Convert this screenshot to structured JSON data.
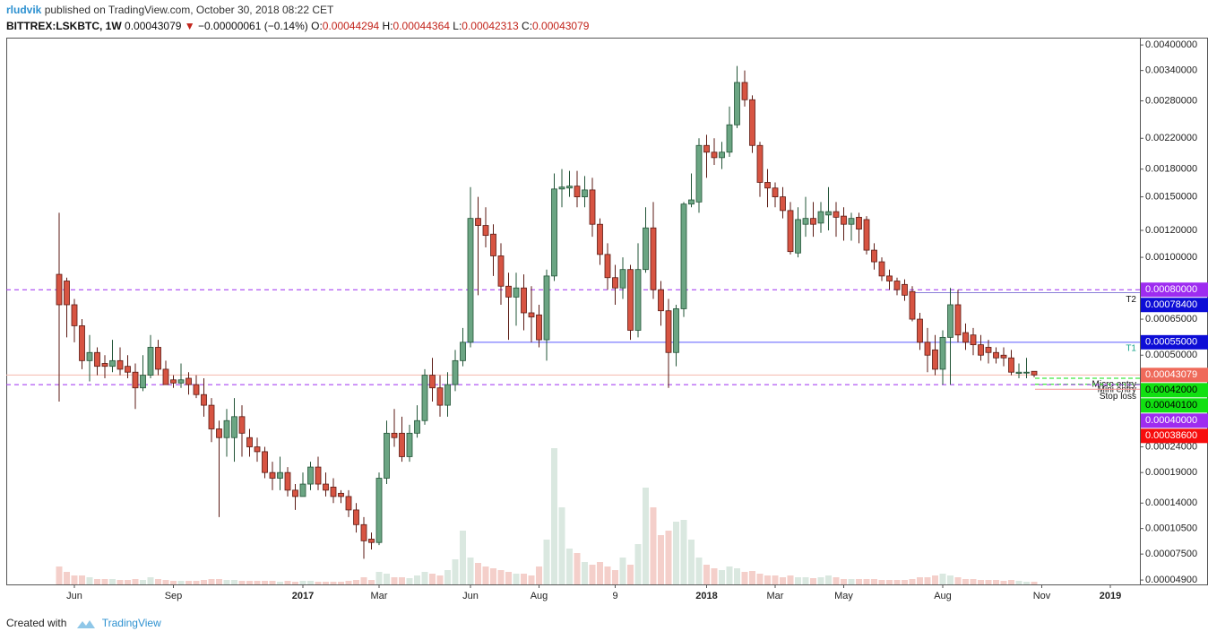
{
  "header": {
    "author": "rludvik",
    "published": "published on TradingView.com, October 30, 2018 08:22 CET",
    "symbol": "BITTREX:LSKBTC, 1W",
    "change": "−0.00000061 (−0.14%)",
    "ohlc_labels": [
      "O:",
      "H:",
      "L:",
      "C:"
    ]
  },
  "footer": {
    "created": "Created with",
    "brand": "TradingView"
  },
  "chart_data": {
    "type": "candlestick",
    "grid": false,
    "categories": [
      null,
      null,
      "Jun",
      null,
      null,
      null,
      null,
      null,
      null,
      null,
      null,
      null,
      null,
      null,
      null,
      "Sep",
      null,
      null,
      null,
      null,
      null,
      null,
      null,
      null,
      null,
      null,
      null,
      null,
      null,
      null,
      null,
      null,
      "2017",
      null,
      null,
      null,
      null,
      null,
      null,
      null,
      null,
      null,
      "Mar",
      null,
      null,
      null,
      null,
      null,
      null,
      null,
      null,
      null,
      null,
      null,
      "Jun",
      null,
      null,
      null,
      null,
      null,
      null,
      null,
      null,
      "Aug",
      null,
      null,
      null,
      null,
      null,
      null,
      null,
      null,
      null,
      "9",
      null,
      null,
      null,
      null,
      null,
      null,
      null,
      null,
      null,
      null,
      null,
      "2018",
      null,
      null,
      null,
      null,
      null,
      null,
      null,
      null,
      "Mar",
      null,
      null,
      null,
      null,
      null,
      null,
      null,
      null,
      "May",
      null,
      null,
      null,
      null,
      null,
      null,
      null,
      null,
      null,
      null,
      null,
      null,
      "Aug",
      null,
      null,
      null,
      null,
      null,
      null,
      null,
      null,
      null,
      null,
      null,
      null,
      "Nov",
      null,
      null,
      null,
      null,
      null,
      null,
      null,
      null,
      "2019",
      null,
      null,
      null
    ],
    "open": [
      0.00089,
      0.00085,
      0.00072,
      0.00062,
      0.00048,
      0.00051,
      0.00047,
      0.00046,
      0.00048,
      0.00046,
      0.00044,
      0.00039,
      0.00043,
      0.00053,
      0.00045,
      0.000415,
      0.000405,
      0.00042,
      0.0004,
      0.00037,
      0.00034,
      0.00028,
      0.00026,
      0.00026,
      0.00031,
      0.00026,
      0.00024,
      0.00023,
      0.00019,
      0.00018,
      0.00019,
      0.00016,
      0.00015,
      0.00017,
      0.0002,
      0.00017,
      0.000165,
      0.000155,
      0.00015,
      0.00013,
      0.00011,
      9.2e-05,
      8.8e-05,
      0.00018,
      0.00027,
      0.00027,
      0.00022,
      0.00027,
      0.0003,
      0.00043,
      0.00039,
      0.00034,
      0.0004,
      0.00048,
      0.00055,
      0.0013,
      0.00124,
      0.00117,
      0.00101,
      0.00082,
      0.00076,
      0.00081,
      0.00068,
      0.00067,
      0.00056,
      0.00088,
      0.00158,
      0.00159,
      0.00161,
      0.0015,
      0.00157,
      0.00125,
      0.00102,
      0.00087,
      0.00081,
      0.00092,
      0.0006,
      0.00092,
      0.00122,
      0.0008,
      0.00069,
      0.00051,
      0.0007,
      0.00143,
      0.00145,
      0.0021,
      0.00201,
      0.00194,
      0.00201,
      0.0024,
      0.00315,
      0.00282,
      0.0021,
      0.00165,
      0.00159,
      0.0015,
      0.00137,
      0.00103,
      0.00125,
      0.0013,
      0.00126,
      0.00133,
      0.00136,
      0.00132,
      0.00125,
      0.00131,
      0.00129,
      0.00105,
      0.00097,
      0.00088,
      0.00085,
      0.00083,
      0.00079,
      0.00065,
      0.00055,
      0.00052,
      0.00045,
      0.00057,
      0.00072,
      0.00059,
      0.00058,
      0.00054,
      0.00053,
      0.00051,
      0.0005,
      0.00049,
      0.000436,
      0.000437,
      0.00044294,
      null,
      null,
      null,
      null,
      null,
      null,
      null,
      null,
      null,
      null,
      null,
      null,
      null
    ],
    "high": [
      0.00135,
      0.00087,
      0.00075,
      0.00065,
      0.00058,
      0.00053,
      0.0005,
      0.00056,
      0.00053,
      0.0005,
      0.00047,
      0.0005,
      0.00058,
      0.00056,
      0.00048,
      0.00043,
      0.00047,
      0.00044,
      0.00043,
      0.00042,
      0.00036,
      0.0003,
      0.00033,
      0.00036,
      0.00034,
      0.00028,
      0.00026,
      0.00024,
      0.00021,
      0.00022,
      0.0002,
      0.00017,
      0.00019,
      0.00021,
      0.00022,
      0.00019,
      0.00018,
      0.00016,
      0.00016,
      0.00014,
      0.00012,
      0.0001,
      0.00019,
      0.0003,
      0.00033,
      0.00031,
      0.00029,
      0.00034,
      0.00045,
      0.00049,
      0.00043,
      0.00044,
      0.00052,
      0.00061,
      0.0016,
      0.0015,
      0.0014,
      0.00125,
      0.0011,
      0.0009,
      0.0009,
      0.00089,
      0.00082,
      0.00072,
      0.00092,
      0.00175,
      0.0018,
      0.00178,
      0.00178,
      0.00172,
      0.0017,
      0.0013,
      0.0011,
      0.00095,
      0.001,
      0.00095,
      0.0011,
      0.0014,
      0.00145,
      0.00085,
      0.00075,
      0.00072,
      0.00145,
      0.00175,
      0.0022,
      0.00225,
      0.0022,
      0.00215,
      0.0027,
      0.0035,
      0.0034,
      0.0029,
      0.00215,
      0.0018,
      0.00165,
      0.0016,
      0.00145,
      0.0014,
      0.0015,
      0.00145,
      0.00145,
      0.0016,
      0.00145,
      0.0014,
      0.00135,
      0.00135,
      0.00132,
      0.0011,
      0.001,
      0.00092,
      0.00087,
      0.00086,
      0.00082,
      0.00068,
      0.00061,
      0.00058,
      0.0006,
      0.00081,
      0.0008,
      0.00063,
      0.00061,
      0.00058,
      0.00056,
      0.00053,
      0.00053,
      0.00052,
      0.00047,
      0.00049,
      0.00044364,
      null,
      null,
      null,
      null,
      null,
      null,
      null,
      null,
      null,
      null,
      null,
      null,
      null
    ],
    "low": [
      0.00035,
      0.00057,
      0.00055,
      0.00045,
      0.00041,
      0.00043,
      0.00042,
      0.00044,
      0.00043,
      0.00042,
      0.00033,
      0.00038,
      0.00042,
      0.00043,
      0.0004,
      0.00039,
      0.00039,
      0.00037,
      0.00036,
      0.00031,
      0.00025,
      0.00012,
      0.00022,
      0.00021,
      0.00022,
      0.00022,
      0.00021,
      0.00018,
      0.00016,
      0.00016,
      0.00015,
      0.00013,
      0.00015,
      0.00016,
      0.00016,
      0.00015,
      0.00014,
      0.00014,
      0.00012,
      0.0001,
      7e-05,
      8e-05,
      8.5e-05,
      0.00017,
      0.00024,
      0.00021,
      0.00021,
      0.00026,
      0.00029,
      0.00035,
      0.00031,
      0.00031,
      0.00038,
      0.00046,
      0.00053,
      0.00077,
      0.00107,
      0.00088,
      0.00072,
      0.00056,
      0.00062,
      0.0006,
      0.00055,
      0.00053,
      0.00048,
      0.00085,
      0.0014,
      0.0015,
      0.0014,
      0.0014,
      0.00115,
      0.00095,
      0.0008,
      0.00072,
      0.00075,
      0.00056,
      0.00057,
      0.0009,
      0.00075,
      0.00062,
      0.00039,
      0.00046,
      0.00066,
      0.0014,
      0.00135,
      0.0017,
      0.00185,
      0.0018,
      0.00195,
      0.00235,
      0.0027,
      0.002,
      0.0015,
      0.0014,
      0.0014,
      0.0013,
      0.00102,
      0.001,
      0.00115,
      0.00115,
      0.00118,
      0.0012,
      0.00115,
      0.00112,
      0.00112,
      0.0011,
      0.00102,
      0.00092,
      0.00085,
      0.0008,
      0.00077,
      0.00074,
      0.00064,
      0.00052,
      0.00044,
      0.00043,
      0.0004,
      0.0004,
      0.00055,
      0.00052,
      0.0005,
      0.00048,
      0.00047,
      0.00047,
      0.00046,
      0.00043,
      0.00042,
      0.00042,
      0.00042313,
      null,
      null,
      null,
      null,
      null,
      null,
      null,
      null,
      null,
      null,
      null,
      null,
      null
    ],
    "close": [
      0.00072,
      0.00072,
      0.00062,
      0.00048,
      0.00051,
      0.00046,
      0.00046,
      0.00048,
      0.00045,
      0.00044,
      0.00039,
      0.00043,
      0.00053,
      0.00045,
      0.0004,
      0.000405,
      0.000415,
      0.0004,
      0.00037,
      0.00034,
      0.00028,
      0.00026,
      0.0003,
      0.00031,
      0.00027,
      0.00024,
      0.00023,
      0.00019,
      0.00018,
      0.00019,
      0.00016,
      0.00015,
      0.00017,
      0.0002,
      0.00017,
      0.00016,
      0.00015,
      0.00015,
      0.00013,
      0.00011,
      9e-05,
      8.8e-05,
      0.00018,
      0.00027,
      0.00026,
      0.00022,
      0.00027,
      0.0003,
      0.00043,
      0.00039,
      0.00034,
      0.0004,
      0.00048,
      0.00055,
      0.0013,
      0.00124,
      0.00116,
      0.00101,
      0.00082,
      0.00076,
      0.00081,
      0.00068,
      0.00066,
      0.00056,
      0.00088,
      0.00158,
      0.0016,
      0.00161,
      0.0015,
      0.00157,
      0.00125,
      0.00102,
      0.00087,
      0.00081,
      0.00092,
      0.0006,
      0.00092,
      0.00122,
      0.0008,
      0.00069,
      0.00051,
      0.0007,
      0.00143,
      0.00147,
      0.0021,
      0.00201,
      0.00194,
      0.00201,
      0.0024,
      0.00315,
      0.00282,
      0.0021,
      0.00165,
      0.00159,
      0.0015,
      0.00137,
      0.00104,
      0.00129,
      0.0013,
      0.00125,
      0.00136,
      0.00136,
      0.00131,
      0.00125,
      0.0013,
      0.00121,
      0.00105,
      0.00097,
      0.00088,
      0.00085,
      0.0008,
      0.00077,
      0.00065,
      0.00055,
      0.0005,
      0.00045,
      0.00057,
      0.00072,
      0.00058,
      0.00055,
      0.00054,
      0.0005,
      0.00051,
      0.00049,
      0.00049,
      0.00044,
      0.00044,
      0.00044,
      0.00043079,
      null,
      null,
      null,
      null,
      null,
      null,
      null,
      null,
      null,
      null,
      null,
      null,
      null
    ],
    "volume": [
      20,
      14,
      10,
      10,
      8,
      6,
      6,
      6,
      5,
      5,
      6,
      5,
      8,
      6,
      5,
      4,
      4,
      4,
      4,
      5,
      6,
      6,
      5,
      5,
      4,
      4,
      4,
      4,
      4,
      3,
      4,
      3,
      4,
      4,
      3,
      3,
      3,
      3,
      4,
      5,
      8,
      5,
      14,
      12,
      8,
      8,
      7,
      10,
      14,
      12,
      10,
      16,
      28,
      60,
      30,
      24,
      20,
      18,
      16,
      14,
      12,
      12,
      10,
      20,
      50,
      152,
      86,
      40,
      35,
      25,
      22,
      25,
      20,
      16,
      30,
      22,
      45,
      108,
      86,
      55,
      60,
      70,
      72,
      50,
      30,
      22,
      18,
      16,
      20,
      18,
      14,
      15,
      12,
      10,
      10,
      8,
      10,
      8,
      8,
      7,
      8,
      10,
      8,
      6,
      6,
      6,
      6,
      6,
      5,
      5,
      5,
      5,
      6,
      8,
      8,
      10,
      12,
      10,
      8,
      6,
      6,
      5,
      5,
      5,
      4,
      5,
      4,
      3,
      3,
      null,
      null,
      null,
      null,
      null,
      null,
      null,
      null,
      null,
      null,
      null,
      null,
      null
    ],
    "up_color": "#6ba583",
    "down_color": "#d75442",
    "ylim": [
      4.5e-05,
      0.00419
    ],
    "yticks": [
      {
        "value": 0.004,
        "label": "0.00400000"
      },
      {
        "value": 0.0034,
        "label": "0.00340000"
      },
      {
        "value": 0.0028,
        "label": "0.00280000"
      },
      {
        "value": 0.0022,
        "label": "0.00220000"
      },
      {
        "value": 0.0018,
        "label": "0.00180000"
      },
      {
        "value": 0.0015,
        "label": "0.00150000"
      },
      {
        "value": 0.0012,
        "label": "0.00120000"
      },
      {
        "value": 0.001,
        "label": "0.00100000"
      },
      {
        "value": 0.00065,
        "label": "0.00065000"
      },
      {
        "value": 0.0005,
        "label": "0.00050000"
      },
      {
        "value": 0.00024,
        "label": "0.00024000"
      },
      {
        "value": 0.00019,
        "label": "0.00019000"
      },
      {
        "value": 0.00014,
        "label": "0.00014000"
      },
      {
        "value": 0.000105,
        "label": "0.00010500"
      },
      {
        "value": 7.5e-05,
        "label": "0.00007500"
      },
      {
        "value": 4.9e-05,
        "label": "0.00004900"
      }
    ],
    "levels": [
      {
        "value": 0.0008,
        "label": "0.00080000",
        "color": "#9e2cf0"
      },
      {
        "value": 0.000784,
        "label": "0.00078400",
        "color": "#0d0dd6",
        "text": "T2"
      },
      {
        "value": 0.00055,
        "label": "0.00055000",
        "color": "#0d0dd6",
        "text": "T1"
      },
      {
        "value": 0.00043079,
        "label": "0.00043079",
        "color": "#ef6a5a"
      },
      {
        "value": 0.00042,
        "label": "0.00042000",
        "color": "#11e011",
        "text": "Micro entry"
      },
      {
        "value": 0.000401,
        "label": "0.00040100",
        "color": "#11e011",
        "text": "Mini entry"
      },
      {
        "value": 0.0004,
        "label": "0.00040000",
        "color": "#9e2cf0"
      },
      {
        "value": 0.000386,
        "label": "0.00038600",
        "color": "#f70d0d",
        "text": "Stop loss"
      }
    ]
  }
}
